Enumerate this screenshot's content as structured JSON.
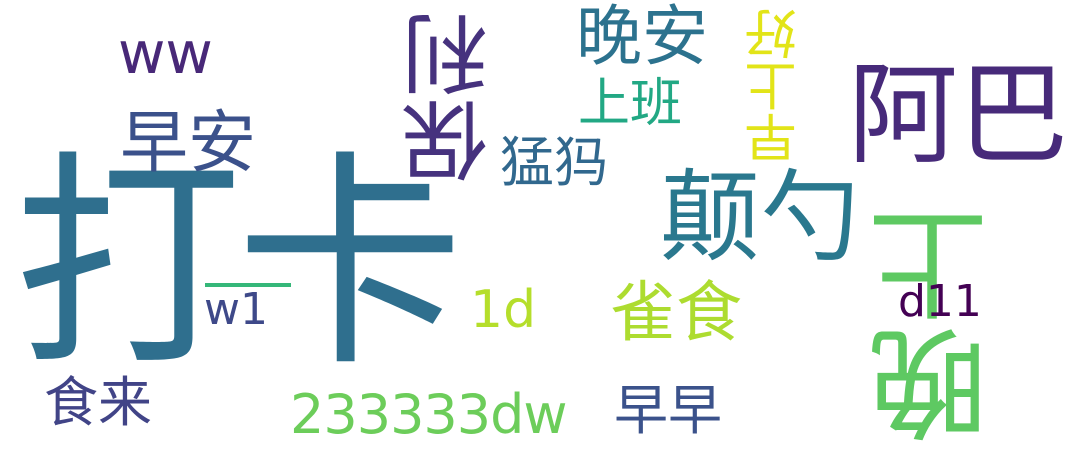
{
  "words": {
    "daka": {
      "text": "打卡",
      "color": "#2f6f8e"
    },
    "aba": {
      "text": "阿巴",
      "color": "#472a7a"
    },
    "dianshao": {
      "text": "颠勺",
      "color": "#2a788e"
    },
    "wanshang": {
      "text": "晚上",
      "color": "#5ec962"
    },
    "baoli": {
      "text": "保利",
      "color": "#46327e"
    },
    "wanan": {
      "text": "晚安",
      "color": "#2c728e"
    },
    "zaoan": {
      "text": "早安",
      "color": "#3b518b"
    },
    "queshi": {
      "text": "雀食",
      "color": "#addc30"
    },
    "ww": {
      "text": "ww",
      "color": "#482878"
    },
    "shangban": {
      "text": "上班",
      "color": "#22a884"
    },
    "zaoshanghao": {
      "text": "早上好",
      "color": "#e2e418"
    },
    "menggou": {
      "text": "猛犸",
      "color": "#31688e"
    },
    "d11": {
      "text": "d11",
      "color": "#440154"
    },
    "dw": {
      "text": "233333dw",
      "color": "#6ccd5a"
    },
    "d1": {
      "text": "1d",
      "color": "#b5de2b"
    },
    "w1": {
      "text": "w1",
      "color": "#3e4989"
    },
    "shilai": {
      "text": "食来",
      "color": "#414487"
    },
    "zaozao": {
      "text": "早早",
      "color": "#3b528b"
    }
  },
  "accent_rule": {
    "color": "#35b779"
  }
}
